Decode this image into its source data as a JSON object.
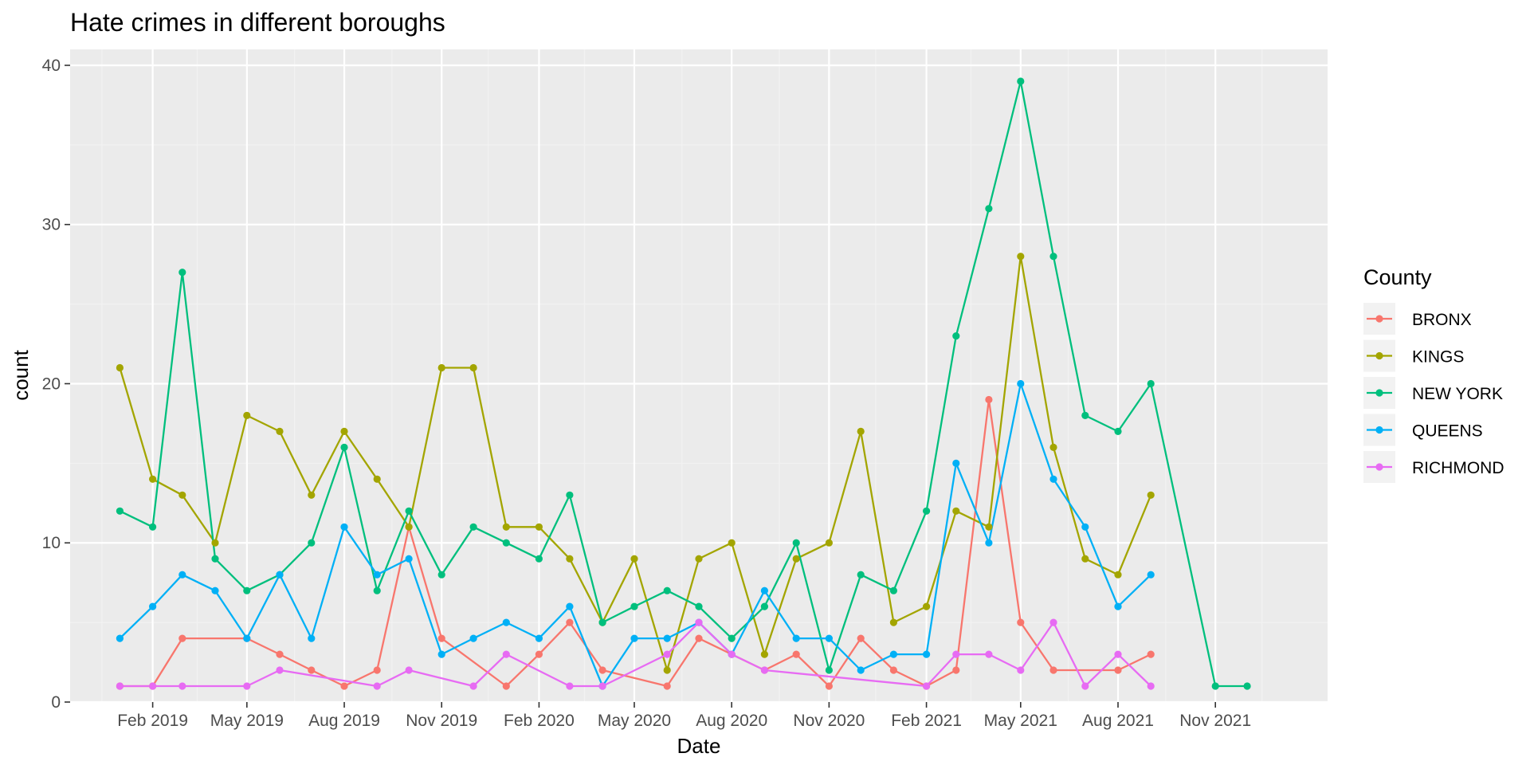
{
  "chart_data": {
    "type": "line",
    "title": "Hate crimes in different boroughs",
    "xlabel": "Date",
    "ylabel": "count",
    "ylim": [
      0,
      41
    ],
    "yticks": [
      0,
      10,
      20,
      30,
      40
    ],
    "x_range": [
      "2018-11-15",
      "2022-02-15"
    ],
    "x_ticks": [
      {
        "date": "2019-02-01",
        "label": "Feb 2019"
      },
      {
        "date": "2019-05-01",
        "label": "May 2019"
      },
      {
        "date": "2019-08-01",
        "label": "Aug 2019"
      },
      {
        "date": "2019-11-01",
        "label": "Nov 2019"
      },
      {
        "date": "2020-02-01",
        "label": "Feb 2020"
      },
      {
        "date": "2020-05-01",
        "label": "May 2020"
      },
      {
        "date": "2020-08-01",
        "label": "Aug 2020"
      },
      {
        "date": "2020-11-01",
        "label": "Nov 2020"
      },
      {
        "date": "2021-02-01",
        "label": "Feb 2021"
      },
      {
        "date": "2021-05-01",
        "label": "May 2021"
      },
      {
        "date": "2021-08-01",
        "label": "Aug 2021"
      },
      {
        "date": "2021-11-01",
        "label": "Nov 2021"
      }
    ],
    "x_minor_ticks": [
      "2018-12-15",
      "2019-03-15",
      "2019-06-15",
      "2019-09-15",
      "2019-12-15",
      "2020-03-15",
      "2020-06-15",
      "2020-09-15",
      "2020-12-15",
      "2021-03-15",
      "2021-06-15",
      "2021-09-15",
      "2021-12-15"
    ],
    "grid": true,
    "legend": {
      "title": "County",
      "position": "right"
    },
    "series": [
      {
        "name": "BRONX",
        "color": "#F8766D",
        "points": [
          [
            "2019-01-01",
            1
          ],
          [
            "2019-02-01",
            1
          ],
          [
            "2019-03-01",
            4
          ],
          [
            "2019-05-01",
            4
          ],
          [
            "2019-06-01",
            3
          ],
          [
            "2019-07-01",
            2
          ],
          [
            "2019-08-01",
            1
          ],
          [
            "2019-09-01",
            2
          ],
          [
            "2019-10-01",
            11
          ],
          [
            "2019-11-01",
            4
          ],
          [
            "2020-01-01",
            1
          ],
          [
            "2020-02-01",
            3
          ],
          [
            "2020-03-01",
            5
          ],
          [
            "2020-04-01",
            2
          ],
          [
            "2020-06-01",
            1
          ],
          [
            "2020-07-01",
            4
          ],
          [
            "2020-08-01",
            3
          ],
          [
            "2020-09-01",
            2
          ],
          [
            "2020-10-01",
            3
          ],
          [
            "2020-11-01",
            1
          ],
          [
            "2020-12-01",
            4
          ],
          [
            "2021-01-01",
            2
          ],
          [
            "2021-02-01",
            1
          ],
          [
            "2021-03-01",
            2
          ],
          [
            "2021-04-01",
            19
          ],
          [
            "2021-05-01",
            5
          ],
          [
            "2021-06-01",
            2
          ],
          [
            "2021-08-01",
            2
          ],
          [
            "2021-09-01",
            3
          ]
        ]
      },
      {
        "name": "KINGS",
        "color": "#A3A500",
        "points": [
          [
            "2019-01-01",
            21
          ],
          [
            "2019-02-01",
            14
          ],
          [
            "2019-03-01",
            13
          ],
          [
            "2019-04-01",
            10
          ],
          [
            "2019-05-01",
            18
          ],
          [
            "2019-06-01",
            17
          ],
          [
            "2019-07-01",
            13
          ],
          [
            "2019-08-01",
            17
          ],
          [
            "2019-09-01",
            14
          ],
          [
            "2019-10-01",
            11
          ],
          [
            "2019-11-01",
            21
          ],
          [
            "2019-12-01",
            21
          ],
          [
            "2020-01-01",
            11
          ],
          [
            "2020-02-01",
            11
          ],
          [
            "2020-03-01",
            9
          ],
          [
            "2020-04-01",
            5
          ],
          [
            "2020-05-01",
            9
          ],
          [
            "2020-06-01",
            2
          ],
          [
            "2020-07-01",
            9
          ],
          [
            "2020-08-01",
            10
          ],
          [
            "2020-09-01",
            3
          ],
          [
            "2020-10-01",
            9
          ],
          [
            "2020-11-01",
            10
          ],
          [
            "2020-12-01",
            17
          ],
          [
            "2021-01-01",
            5
          ],
          [
            "2021-02-01",
            6
          ],
          [
            "2021-03-01",
            12
          ],
          [
            "2021-04-01",
            11
          ],
          [
            "2021-05-01",
            28
          ],
          [
            "2021-06-01",
            16
          ],
          [
            "2021-07-01",
            9
          ],
          [
            "2021-08-01",
            8
          ],
          [
            "2021-09-01",
            13
          ]
        ]
      },
      {
        "name": "NEW YORK",
        "color": "#00BF7D",
        "points": [
          [
            "2019-01-01",
            12
          ],
          [
            "2019-02-01",
            11
          ],
          [
            "2019-03-01",
            27
          ],
          [
            "2019-04-01",
            9
          ],
          [
            "2019-05-01",
            7
          ],
          [
            "2019-06-01",
            8
          ],
          [
            "2019-07-01",
            10
          ],
          [
            "2019-08-01",
            16
          ],
          [
            "2019-09-01",
            7
          ],
          [
            "2019-10-01",
            12
          ],
          [
            "2019-11-01",
            8
          ],
          [
            "2019-12-01",
            11
          ],
          [
            "2020-01-01",
            10
          ],
          [
            "2020-02-01",
            9
          ],
          [
            "2020-03-01",
            13
          ],
          [
            "2020-04-01",
            5
          ],
          [
            "2020-05-01",
            6
          ],
          [
            "2020-06-01",
            7
          ],
          [
            "2020-07-01",
            6
          ],
          [
            "2020-08-01",
            4
          ],
          [
            "2020-09-01",
            6
          ],
          [
            "2020-10-01",
            10
          ],
          [
            "2020-11-01",
            2
          ],
          [
            "2020-12-01",
            8
          ],
          [
            "2021-01-01",
            7
          ],
          [
            "2021-02-01",
            12
          ],
          [
            "2021-03-01",
            23
          ],
          [
            "2021-04-01",
            31
          ],
          [
            "2021-05-01",
            39
          ],
          [
            "2021-06-01",
            28
          ],
          [
            "2021-07-01",
            18
          ],
          [
            "2021-08-01",
            17
          ],
          [
            "2021-09-01",
            20
          ],
          [
            "2021-11-01",
            1
          ],
          [
            "2021-12-01",
            1
          ]
        ]
      },
      {
        "name": "QUEENS",
        "color": "#00B0F6",
        "points": [
          [
            "2019-01-01",
            4
          ],
          [
            "2019-02-01",
            6
          ],
          [
            "2019-03-01",
            8
          ],
          [
            "2019-04-01",
            7
          ],
          [
            "2019-05-01",
            4
          ],
          [
            "2019-06-01",
            8
          ],
          [
            "2019-07-01",
            4
          ],
          [
            "2019-08-01",
            11
          ],
          [
            "2019-09-01",
            8
          ],
          [
            "2019-10-01",
            9
          ],
          [
            "2019-11-01",
            3
          ],
          [
            "2019-12-01",
            4
          ],
          [
            "2020-01-01",
            5
          ],
          [
            "2020-02-01",
            4
          ],
          [
            "2020-03-01",
            6
          ],
          [
            "2020-04-01",
            1
          ],
          [
            "2020-05-01",
            4
          ],
          [
            "2020-06-01",
            4
          ],
          [
            "2020-07-01",
            5
          ],
          [
            "2020-08-01",
            3
          ],
          [
            "2020-09-01",
            7
          ],
          [
            "2020-10-01",
            4
          ],
          [
            "2020-11-01",
            4
          ],
          [
            "2020-12-01",
            2
          ],
          [
            "2021-01-01",
            3
          ],
          [
            "2021-02-01",
            3
          ],
          [
            "2021-03-01",
            15
          ],
          [
            "2021-04-01",
            10
          ],
          [
            "2021-05-01",
            20
          ],
          [
            "2021-06-01",
            14
          ],
          [
            "2021-07-01",
            11
          ],
          [
            "2021-08-01",
            6
          ],
          [
            "2021-09-01",
            8
          ]
        ]
      },
      {
        "name": "RICHMOND",
        "color": "#E76BF3",
        "points": [
          [
            "2019-01-01",
            1
          ],
          [
            "2019-02-01",
            1
          ],
          [
            "2019-03-01",
            1
          ],
          [
            "2019-05-01",
            1
          ],
          [
            "2019-06-01",
            2
          ],
          [
            "2019-09-01",
            1
          ],
          [
            "2019-10-01",
            2
          ],
          [
            "2019-12-01",
            1
          ],
          [
            "2020-01-01",
            3
          ],
          [
            "2020-03-01",
            1
          ],
          [
            "2020-04-01",
            1
          ],
          [
            "2020-06-01",
            3
          ],
          [
            "2020-07-01",
            5
          ],
          [
            "2020-08-01",
            3
          ],
          [
            "2020-09-01",
            2
          ],
          [
            "2021-02-01",
            1
          ],
          [
            "2021-03-01",
            3
          ],
          [
            "2021-04-01",
            3
          ],
          [
            "2021-05-01",
            2
          ],
          [
            "2021-06-01",
            5
          ],
          [
            "2021-07-01",
            1
          ],
          [
            "2021-08-01",
            3
          ],
          [
            "2021-09-01",
            1
          ]
        ]
      }
    ]
  }
}
